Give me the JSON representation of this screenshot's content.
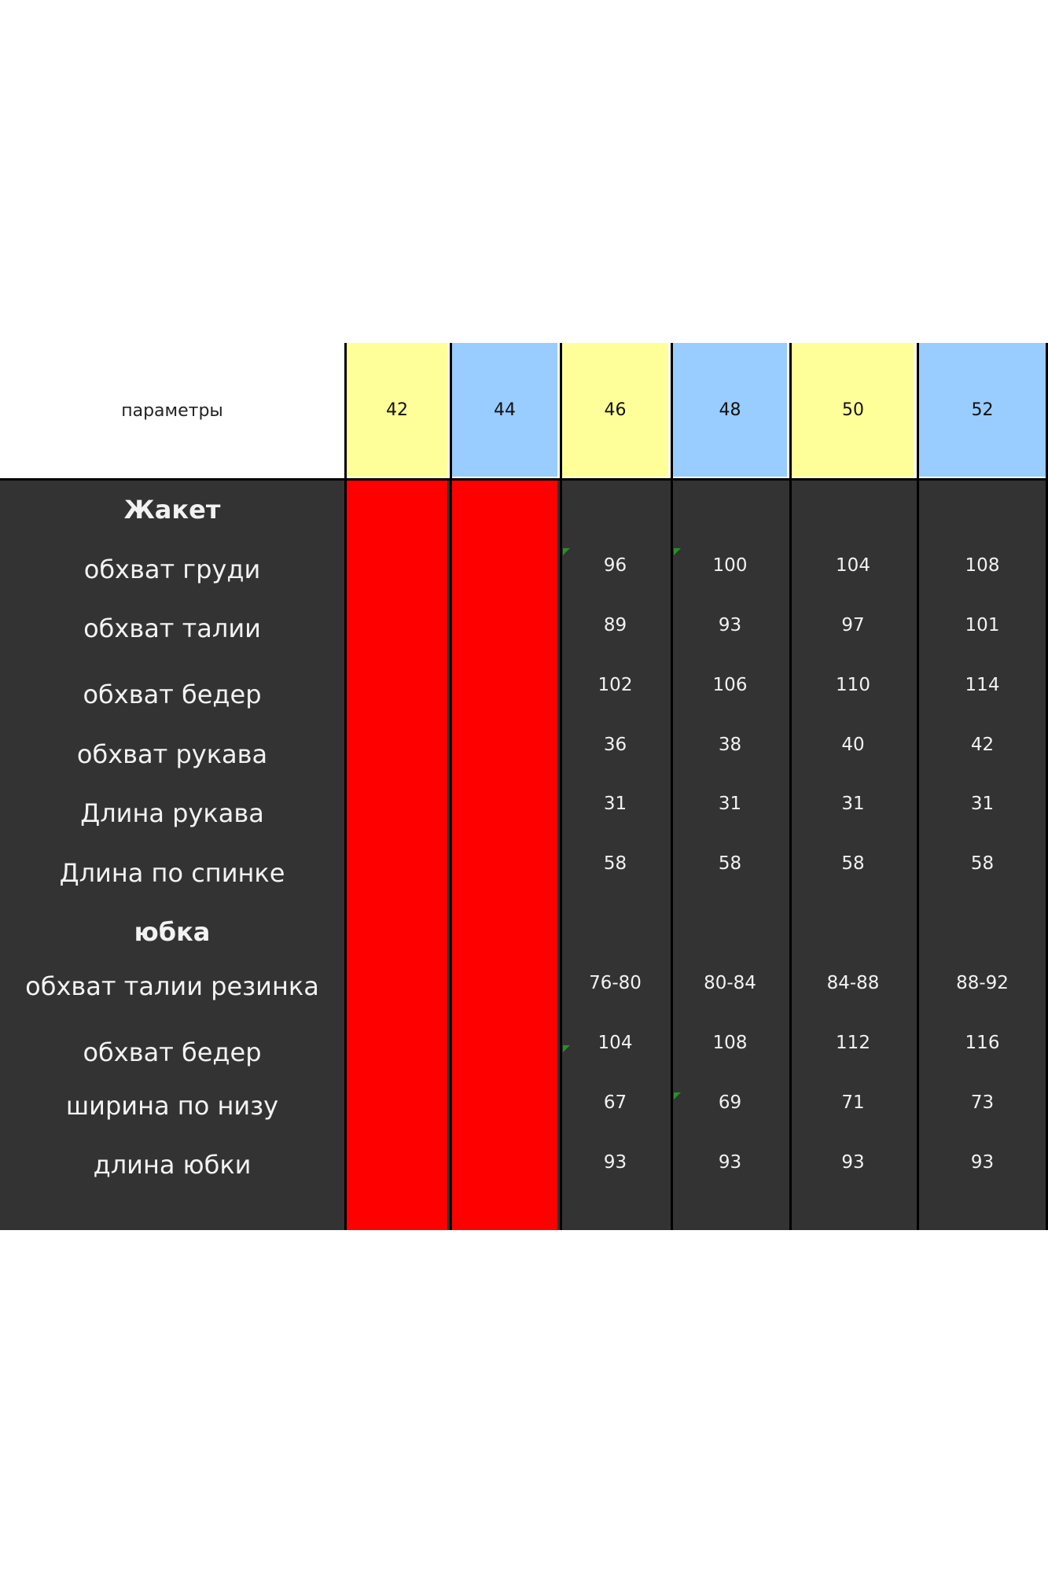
{
  "table": {
    "header_label": "параметры",
    "sizes": [
      "42",
      "44",
      "46",
      "48",
      "50",
      "52"
    ],
    "size_colors": [
      "#ffff99",
      "#99ccff",
      "#ffff99",
      "#99ccff",
      "#ffff99",
      "#99ccff"
    ],
    "unavailable_color": "#ff0000",
    "body_color": "#333333",
    "rows": [
      {
        "label": "Жакет",
        "section": true,
        "values": [
          "",
          "",
          "",
          ""
        ]
      },
      {
        "label": "обхват груди",
        "values": [
          "96",
          "100",
          "104",
          "108"
        ]
      },
      {
        "label": "обхват талии",
        "values": [
          "89",
          "93",
          "97",
          "101"
        ]
      },
      {
        "label": "обхват бедер",
        "values": [
          "102",
          "106",
          "110",
          "114"
        ]
      },
      {
        "label": "обхват рукава",
        "values": [
          "36",
          "38",
          "40",
          "42"
        ]
      },
      {
        "label": "Длина рукава",
        "values": [
          "31",
          "31",
          "31",
          "31"
        ]
      },
      {
        "label": "Длина по спинке",
        "values": [
          "58",
          "58",
          "58",
          "58"
        ]
      },
      {
        "label": "юбка",
        "section": true,
        "values": [
          "",
          "",
          "",
          ""
        ]
      },
      {
        "label": "обхват талии резинка",
        "values": [
          "76-80",
          "80-84",
          "84-88",
          "88-92"
        ]
      },
      {
        "label": "обхват бедер",
        "values": [
          "104",
          "108",
          "112",
          "116"
        ]
      },
      {
        "label": "ширина по низу",
        "values": [
          "67",
          "69",
          "71",
          "73"
        ]
      },
      {
        "label": "длина юбки",
        "values": [
          "93",
          "93",
          "93",
          "93"
        ]
      }
    ]
  }
}
